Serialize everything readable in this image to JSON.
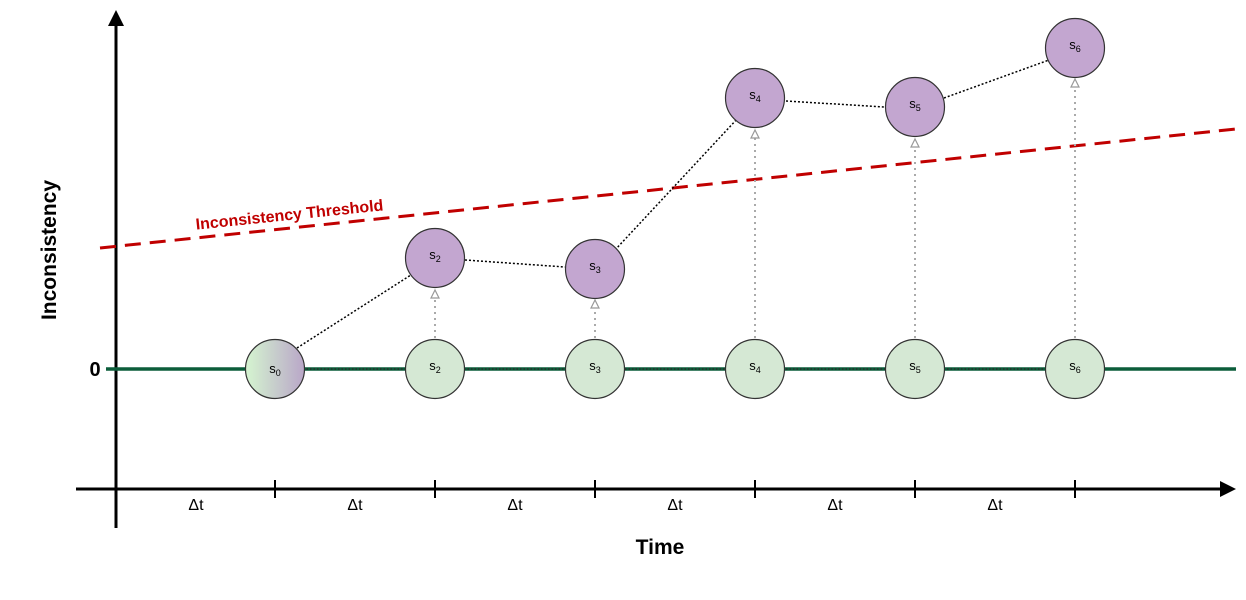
{
  "axes": {
    "x_label": "Time",
    "y_label": "Inconsistency",
    "zero_label": "0",
    "interval_label": "Δt"
  },
  "threshold": {
    "label": "Inconsistency Threshold",
    "color": "#c00000"
  },
  "colors": {
    "baseline": "#0b5d3a",
    "consistent_fill": "#d5e8d4",
    "inconsistent_fill": "#c3a6d0",
    "node_stroke": "#333333"
  },
  "baseline_nodes": [
    {
      "label": "s",
      "sub": "0"
    },
    {
      "label": "s",
      "sub": "2"
    },
    {
      "label": "s",
      "sub": "3"
    },
    {
      "label": "s",
      "sub": "4"
    },
    {
      "label": "s",
      "sub": "5"
    },
    {
      "label": "s",
      "sub": "6"
    }
  ],
  "upper_nodes": [
    {
      "label": "s",
      "sub": "2"
    },
    {
      "label": "s",
      "sub": "3"
    },
    {
      "label": "s",
      "sub": "4"
    },
    {
      "label": "s",
      "sub": "5"
    },
    {
      "label": "s",
      "sub": "6"
    }
  ],
  "intervals": [
    "Δt",
    "Δt",
    "Δt",
    "Δt",
    "Δt",
    "Δt"
  ]
}
